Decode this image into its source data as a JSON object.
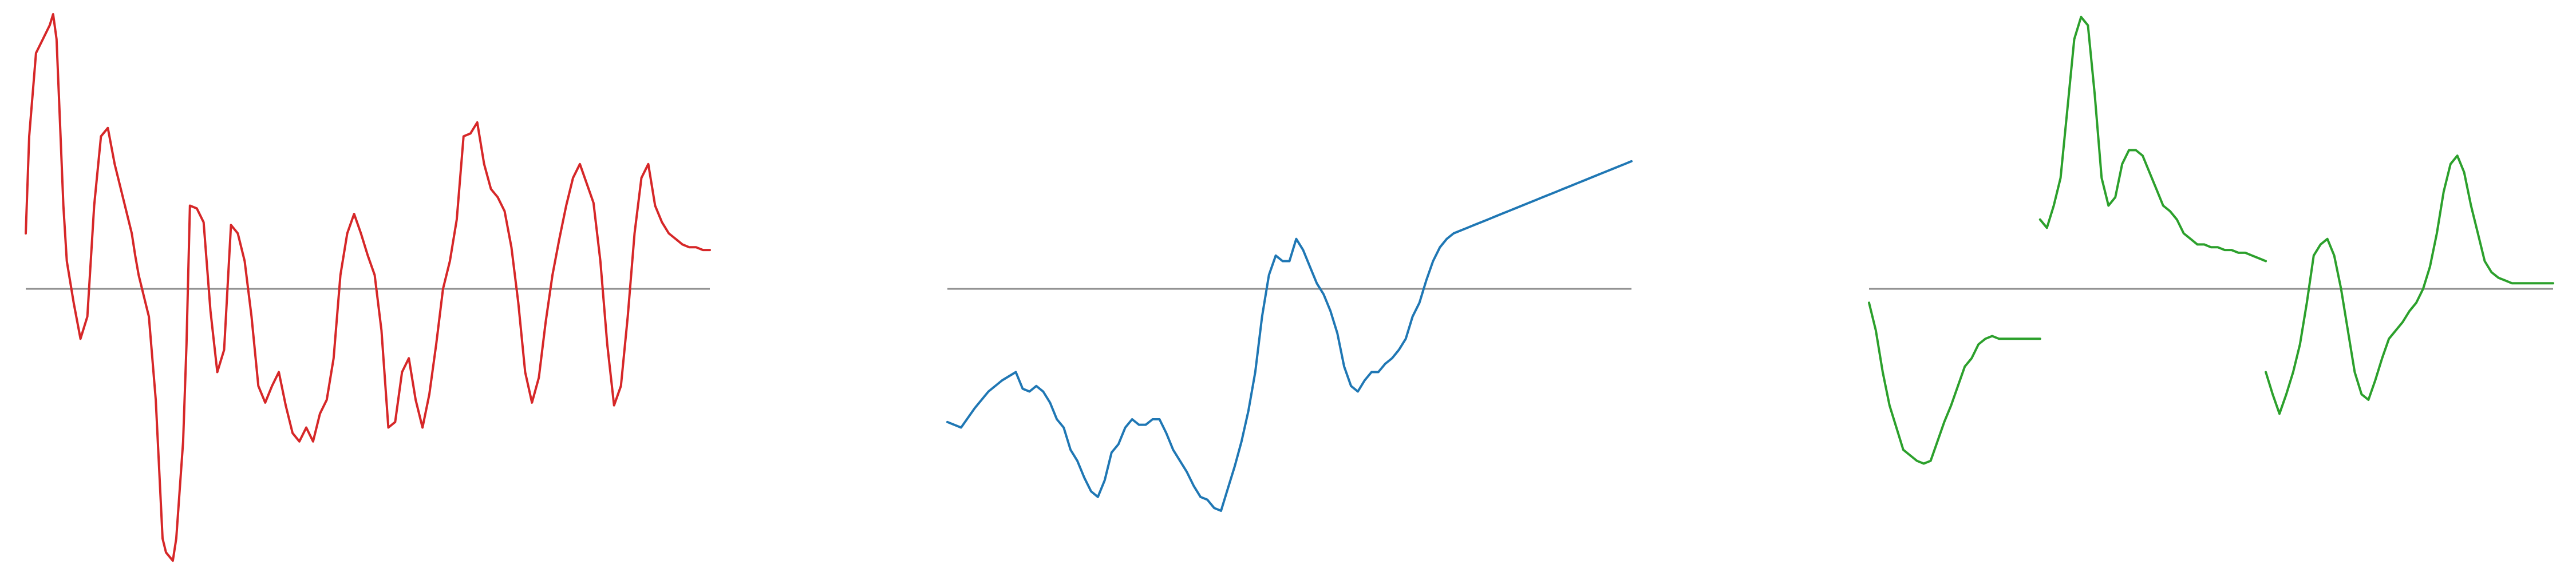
{
  "colors": {
    "background": "#ffffff",
    "baseline": "#8c8c8c",
    "red": "#d62728",
    "blue": "#1f77b4",
    "green": "#2ca02c"
  },
  "chart_data": [
    {
      "type": "line",
      "title": "",
      "xlabel": "",
      "ylabel": "",
      "grid": false,
      "axes_visible": false,
      "baseline_y": 0,
      "xlim": [
        0,
        100
      ],
      "ylim": [
        -1.0,
        1.0
      ],
      "series": [
        {
          "color": "red",
          "x": [
            0,
            0.5,
            1.5,
            2.5,
            3.5,
            4.0,
            4.5,
            5.0,
            5.5,
            6.0,
            7.0,
            8.0,
            9.0,
            10.0,
            11.0,
            12.0,
            13.0,
            14.0,
            15.5,
            16.0,
            16.5,
            17.5,
            18.0,
            19.0,
            20.0,
            20.5,
            21.5,
            22.0,
            23.0,
            23.5,
            24.0,
            25.0,
            26.0,
            27.0,
            28.0,
            29.0,
            30.0,
            31.0,
            32.0,
            33.0,
            34.0,
            35.0,
            36.0,
            37.0,
            38.0,
            39.0,
            40.0,
            41.0,
            42.0,
            43.0,
            44.0,
            45.0,
            46.0,
            47.0,
            48.0,
            49.0,
            50.0,
            51.0,
            52.0,
            53.0,
            54.0,
            55.0,
            56.0,
            57.0,
            58.0,
            59.0,
            60.0,
            61.0,
            62.0,
            63.0,
            64.0,
            65.0,
            66.0,
            67.0,
            68.0,
            69.0,
            70.0,
            71.0,
            72.0,
            73.0,
            74.0,
            75.0,
            76.0,
            77.0,
            78.0,
            79.0,
            80.0,
            81.0,
            82.0,
            83.0,
            84.0,
            85.0,
            86.0,
            87.0,
            88.0,
            89.0,
            90.0,
            91.0,
            92.0,
            93.0,
            94.0,
            95.0,
            96.0,
            97.0,
            98.0,
            99.0,
            100.0
          ],
          "y": [
            0.2,
            0.55,
            0.85,
            0.9,
            0.95,
            0.99,
            0.9,
            0.6,
            0.3,
            0.1,
            -0.05,
            -0.18,
            -0.1,
            0.3,
            0.55,
            0.58,
            0.45,
            0.35,
            0.2,
            0.12,
            0.05,
            -0.05,
            -0.1,
            -0.4,
            -0.9,
            -0.95,
            -0.98,
            -0.9,
            -0.55,
            -0.2,
            0.3,
            0.29,
            0.24,
            -0.08,
            -0.3,
            -0.22,
            0.23,
            0.2,
            0.1,
            -0.1,
            -0.35,
            -0.41,
            -0.35,
            -0.3,
            -0.42,
            -0.52,
            -0.55,
            -0.5,
            -0.55,
            -0.45,
            -0.4,
            -0.25,
            0.05,
            0.2,
            0.27,
            0.2,
            0.12,
            0.05,
            -0.15,
            -0.5,
            -0.48,
            -0.3,
            -0.25,
            -0.4,
            -0.5,
            -0.38,
            -0.2,
            0.0,
            0.1,
            0.25,
            0.55,
            0.56,
            0.6,
            0.45,
            0.36,
            0.33,
            0.28,
            0.15,
            -0.05,
            -0.3,
            -0.41,
            -0.32,
            -0.12,
            0.05,
            0.18,
            0.3,
            0.4,
            0.45,
            0.38,
            0.31,
            0.1,
            -0.2,
            -0.42,
            -0.35,
            -0.1,
            0.2,
            0.4,
            0.45,
            0.3,
            0.24,
            0.2,
            0.18,
            0.16,
            0.15,
            0.15,
            0.14,
            0.14
          ]
        }
      ]
    },
    {
      "type": "line",
      "title": "",
      "xlabel": "",
      "ylabel": "",
      "grid": false,
      "axes_visible": false,
      "baseline_y": 0,
      "xlim": [
        0,
        100
      ],
      "ylim": [
        -1.0,
        1.0
      ],
      "series": [
        {
          "color": "blue",
          "x": [
            0,
            2,
            4,
            6,
            8,
            10,
            11,
            12,
            13,
            14,
            15,
            16,
            17,
            18,
            19,
            20,
            21,
            22,
            23,
            24,
            25,
            26,
            27,
            28,
            29,
            30,
            31,
            32,
            33,
            34,
            35,
            36,
            37,
            38,
            39,
            40,
            41,
            42,
            43,
            44,
            45,
            46,
            47,
            48,
            49,
            50,
            51,
            52,
            53,
            54,
            55,
            56,
            57,
            58,
            59,
            60,
            61,
            62,
            63,
            64,
            65,
            66,
            67,
            68,
            69,
            70,
            71,
            72,
            73,
            74,
            75,
            76,
            77,
            78,
            79,
            80,
            81,
            82,
            83,
            84,
            85,
            86,
            87,
            88,
            89,
            90,
            91,
            92,
            93,
            94,
            95,
            96,
            97,
            98,
            99,
            100
          ],
          "y": [
            -0.48,
            -0.5,
            -0.43,
            -0.37,
            -0.33,
            -0.3,
            -0.36,
            -0.37,
            -0.35,
            -0.37,
            -0.41,
            -0.47,
            -0.5,
            -0.58,
            -0.62,
            -0.68,
            -0.73,
            -0.75,
            -0.69,
            -0.59,
            -0.56,
            -0.5,
            -0.47,
            -0.49,
            -0.49,
            -0.47,
            -0.47,
            -0.52,
            -0.58,
            -0.62,
            -0.66,
            -0.71,
            -0.75,
            -0.76,
            -0.79,
            -0.8,
            -0.72,
            -0.64,
            -0.55,
            -0.44,
            -0.3,
            -0.1,
            0.05,
            0.12,
            0.1,
            0.1,
            0.18,
            0.14,
            0.08,
            0.02,
            -0.02,
            -0.08,
            -0.16,
            -0.28,
            -0.35,
            -0.37,
            -0.33,
            -0.3,
            -0.3,
            -0.27,
            -0.25,
            -0.22,
            -0.18,
            -0.1,
            -0.05,
            0.03,
            0.1,
            0.15,
            0.18,
            0.2,
            0.21,
            0.22,
            0.23,
            0.24,
            0.25,
            0.26,
            0.27,
            0.28,
            0.29,
            0.3,
            0.31,
            0.32,
            0.33,
            0.34,
            0.35,
            0.36,
            0.37,
            0.38,
            0.39,
            0.4,
            0.41,
            0.42,
            0.43,
            0.44,
            0.45,
            0.46
          ]
        }
      ]
    },
    {
      "type": "line",
      "title": "",
      "xlabel": "",
      "ylabel": "",
      "grid": false,
      "axes_visible": false,
      "baseline_y": 0,
      "xlim": [
        0,
        100
      ],
      "ylim": [
        -1.0,
        1.0
      ],
      "series": [
        {
          "color": "green",
          "segments": [
            {
              "x": [
                0,
                1,
                2,
                3,
                4,
                5,
                6,
                7,
                8,
                9,
                10,
                11,
                12,
                13,
                14,
                15,
                16,
                17,
                18,
                19,
                20,
                21,
                22,
                23,
                24,
                25
              ],
              "y": [
                -0.05,
                -0.15,
                -0.3,
                -0.42,
                -0.5,
                -0.58,
                -0.6,
                -0.62,
                -0.63,
                -0.62,
                -0.55,
                -0.48,
                -0.42,
                -0.35,
                -0.28,
                -0.25,
                -0.2,
                -0.18,
                -0.17,
                -0.18,
                -0.18,
                -0.18,
                -0.18,
                -0.18,
                -0.18,
                -0.18
              ]
            },
            {
              "x": [
                25,
                26,
                27,
                28,
                29,
                30,
                31,
                32,
                33,
                34,
                35,
                36,
                37,
                38,
                39,
                40,
                41,
                42,
                43,
                44,
                45,
                46,
                47,
                48,
                49,
                50,
                51,
                52,
                53,
                54,
                55,
                56,
                57,
                58
              ],
              "y": [
                0.25,
                0.22,
                0.3,
                0.4,
                0.65,
                0.9,
                0.98,
                0.95,
                0.7,
                0.4,
                0.3,
                0.33,
                0.45,
                0.5,
                0.5,
                0.48,
                0.42,
                0.36,
                0.3,
                0.28,
                0.25,
                0.2,
                0.18,
                0.16,
                0.16,
                0.15,
                0.15,
                0.14,
                0.14,
                0.13,
                0.13,
                0.12,
                0.11,
                0.1
              ]
            },
            {
              "x": [
                58,
                59,
                60,
                61,
                62,
                63,
                64,
                65,
                66,
                67,
                68,
                69,
                70,
                71,
                72,
                73,
                74,
                75,
                76,
                77,
                78,
                79,
                80,
                81,
                82,
                83,
                84,
                85,
                86,
                87,
                88,
                89,
                90,
                91,
                92,
                93,
                94,
                95,
                96,
                97,
                98,
                99,
                100
              ],
              "y": [
                -0.3,
                -0.38,
                -0.45,
                -0.38,
                -0.3,
                -0.2,
                -0.05,
                0.12,
                0.16,
                0.18,
                0.12,
                0.0,
                -0.15,
                -0.3,
                -0.38,
                -0.4,
                -0.33,
                -0.25,
                -0.18,
                -0.15,
                -0.12,
                -0.08,
                -0.05,
                0.0,
                0.08,
                0.2,
                0.35,
                0.45,
                0.48,
                0.42,
                0.3,
                0.2,
                0.1,
                0.06,
                0.04,
                0.03,
                0.02,
                0.02,
                0.02,
                0.02,
                0.02,
                0.02,
                0.02
              ]
            }
          ]
        }
      ]
    }
  ]
}
